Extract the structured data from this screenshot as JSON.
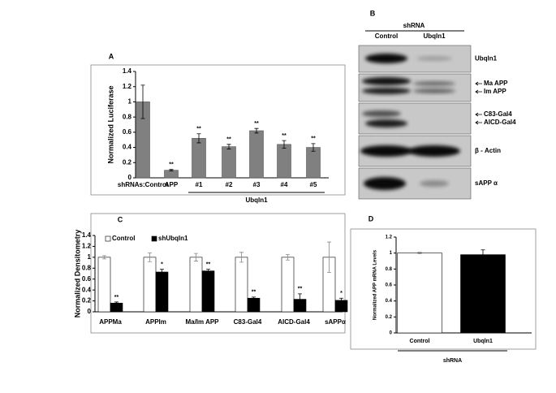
{
  "chart_data": [
    {
      "type": "bar",
      "panel": "A",
      "ylabel": "Normalized Luciferase",
      "categories": [
        "shRNAs:Control",
        "APP",
        "#1",
        "#2",
        "#3",
        "#4",
        "#5"
      ],
      "group_label": "Ubqln1",
      "series": [
        {
          "color": "#808080",
          "values": [
            1.0,
            0.1,
            0.52,
            0.41,
            0.62,
            0.44,
            0.4
          ],
          "errors": [
            0.22,
            0.01,
            0.06,
            0.03,
            0.03,
            0.05,
            0.05
          ],
          "annotations": [
            null,
            "**",
            "**",
            "**",
            "**",
            "**",
            "**"
          ]
        }
      ],
      "ylim": [
        0,
        1.4
      ],
      "yticks": [
        0,
        0.2,
        0.4,
        0.6,
        0.8,
        1,
        1.2,
        1.4
      ]
    },
    {
      "type": "bar",
      "panel": "C",
      "ylabel": "Normalized Densitometry",
      "categories": [
        "APPMa",
        "APPIm",
        "Ma/Im APP",
        "C83-Gal4",
        "AICD-Gal4",
        "sAPPα"
      ],
      "series": [
        {
          "name": "Control",
          "color": "#ffffff",
          "values": [
            1.0,
            1.0,
            1.0,
            1.0,
            1.0,
            1.0
          ],
          "errors": [
            0.03,
            0.08,
            0.07,
            0.09,
            0.05,
            0.28
          ]
        },
        {
          "name": "shUbqln1",
          "color": "#000000",
          "values": [
            0.16,
            0.73,
            0.75,
            0.25,
            0.23,
            0.21
          ],
          "errors": [
            0.02,
            0.05,
            0.03,
            0.02,
            0.1,
            0.04
          ],
          "annotations": [
            "**",
            "*",
            "**",
            "**",
            "**",
            "*"
          ]
        }
      ],
      "ylim": [
        0,
        1.4
      ],
      "yticks": [
        0,
        0.2,
        0.4,
        0.6,
        0.8,
        1,
        1.2,
        1.4
      ],
      "legend": "top"
    },
    {
      "type": "bar",
      "panel": "D",
      "ylabel": "Normalized APP mRNA Levels",
      "categories": [
        "Control",
        "Ubqln1"
      ],
      "group_label": "shRNA",
      "series": [
        {
          "colors": [
            "#ffffff",
            "#000000"
          ],
          "values": [
            1.0,
            0.98
          ],
          "errors": [
            0.01,
            0.06
          ]
        }
      ],
      "ylim": [
        0,
        1.2
      ],
      "yticks": [
        0,
        0.2,
        0.4,
        0.6,
        0.8,
        1,
        1.2
      ]
    }
  ],
  "blot": {
    "panel": "B",
    "header": "shRNA",
    "lanes": [
      "Control",
      "Ubqln1"
    ],
    "rows": [
      [
        "Ubqln1"
      ],
      [
        "Ma APP",
        "Im APP"
      ],
      [
        "C83-Gal4",
        "AICD-Gal4"
      ],
      [
        "β - Actin"
      ],
      [
        "sAPP α"
      ]
    ]
  }
}
